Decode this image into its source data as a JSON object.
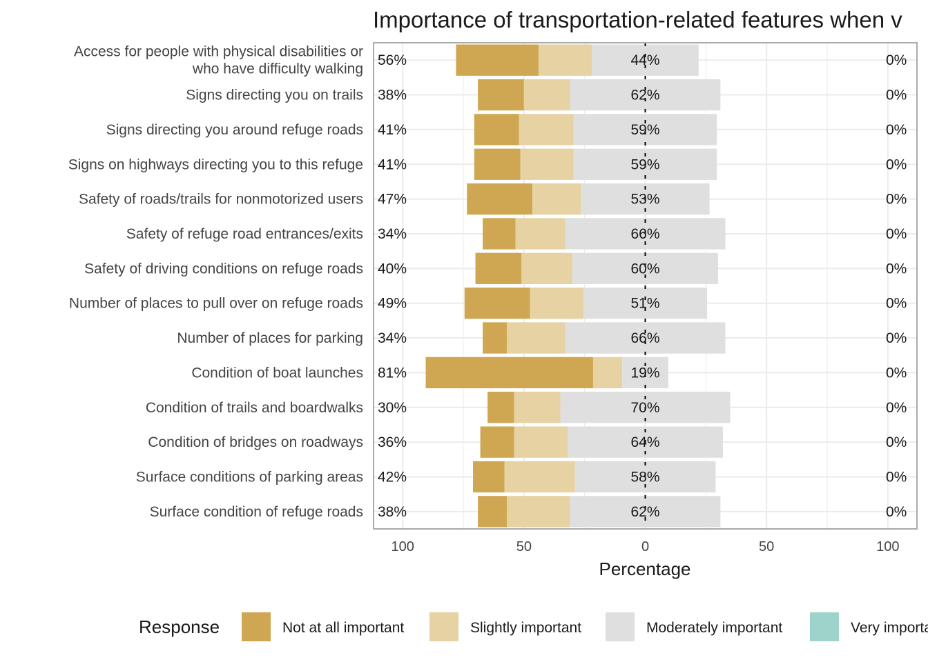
{
  "chart_data": {
    "type": "bar",
    "subtype": "diverging-stacked-likert",
    "title": "Importance of transportation-related features when v",
    "xlabel": "Percentage",
    "xlim": [
      -112,
      112
    ],
    "x_ticks": [
      -100,
      -50,
      0,
      50,
      100
    ],
    "x_tick_labels": [
      "100",
      "50",
      "0",
      "50",
      "100"
    ],
    "grid": true,
    "legend_title": "Response",
    "legend_position": "bottom",
    "categories": [
      [
        "Access for people with physical disabilities or",
        "who have difficulty walking"
      ],
      [
        "Signs directing you on trails"
      ],
      [
        "Signs directing you around refuge roads"
      ],
      [
        "Signs on highways directing you to this refuge"
      ],
      [
        "Safety of roads/trails for nonmotorized users"
      ],
      [
        "Safety of refuge road entrances/exits"
      ],
      [
        "Safety of driving conditions on refuge roads"
      ],
      [
        "Number of places to pull over on refuge roads"
      ],
      [
        "Number of places for parking"
      ],
      [
        "Condition of boat launches"
      ],
      [
        "Condition of trails and boardwalks"
      ],
      [
        "Condition of bridges on roadways"
      ],
      [
        "Surface conditions of parking areas"
      ],
      [
        "Surface condition of refuge roads"
      ]
    ],
    "series": [
      {
        "name": "Not at all important",
        "color": "#CFA752",
        "values": [
          34,
          19,
          18.5,
          19,
          27,
          13.5,
          19,
          27,
          10,
          69,
          11,
          14,
          13,
          12
        ]
      },
      {
        "name": "Slightly important",
        "color": "#E6D2A3",
        "values": [
          22,
          19,
          22.5,
          22,
          20,
          20.5,
          21,
          22,
          24,
          12,
          19,
          22,
          29,
          26
        ]
      },
      {
        "name": "Moderately important",
        "color": "#DFDFDF",
        "values": [
          44,
          62,
          59,
          59,
          53,
          66,
          60,
          51,
          66,
          19,
          70,
          64,
          58,
          62
        ]
      },
      {
        "name": "Very important",
        "color": "#9DD3CB",
        "values": [
          0,
          0,
          0,
          0,
          0,
          0,
          0,
          0,
          0,
          0,
          0,
          0,
          0,
          0
        ]
      }
    ],
    "left_labels": [
      "56%",
      "38%",
      "41%",
      "41%",
      "47%",
      "34%",
      "40%",
      "49%",
      "34%",
      "81%",
      "30%",
      "36%",
      "42%",
      "38%"
    ],
    "center_labels": [
      "44%",
      "62%",
      "59%",
      "59%",
      "53%",
      "66%",
      "60%",
      "51%",
      "66%",
      "19%",
      "70%",
      "64%",
      "58%",
      "62%"
    ],
    "right_labels": [
      "0%",
      "0%",
      "0%",
      "0%",
      "0%",
      "0%",
      "0%",
      "0%",
      "0%",
      "0%",
      "0%",
      "0%",
      "0%",
      "0%"
    ]
  }
}
